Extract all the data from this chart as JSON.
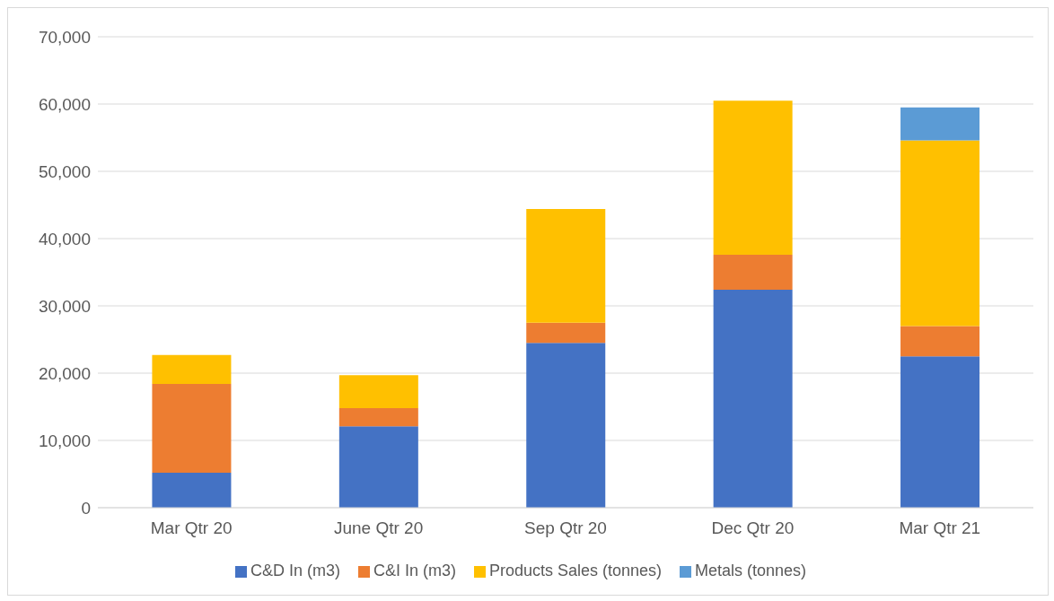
{
  "chart_data": {
    "type": "bar",
    "stacked": true,
    "categories": [
      "Mar Qtr 20",
      "June Qtr 20",
      "Sep Qtr 20",
      "Dec Qtr 20",
      "Mar Qtr 21"
    ],
    "series": [
      {
        "name": "C&D In (m3)",
        "color": "#4472c4",
        "values": [
          5200,
          12100,
          24500,
          32400,
          22500
        ]
      },
      {
        "name": "C&I In (m3)",
        "color": "#ed7d31",
        "values": [
          13200,
          2700,
          3000,
          5200,
          4500
        ]
      },
      {
        "name": "Products Sales (tonnes)",
        "color": "#ffc000",
        "values": [
          4300,
          4900,
          16900,
          22900,
          27600
        ]
      },
      {
        "name": "Metals (tonnes)",
        "color": "#5b9bd5",
        "values": [
          null,
          null,
          null,
          null,
          4900
        ]
      }
    ],
    "ylim": [
      0,
      70000
    ],
    "yticks": [
      0,
      {
        "value": 10000,
        "label": "10,000"
      },
      {
        "value": 20000,
        "label": "20,000"
      },
      {
        "value": 30000,
        "label": "30,000"
      },
      {
        "value": 40000,
        "label": "40,000"
      },
      {
        "value": 50000,
        "label": "50,000"
      },
      {
        "value": 60000,
        "label": "60,000"
      },
      {
        "value": 70000,
        "label": "70,000"
      }
    ],
    "grid": "y",
    "legend": "bottom"
  }
}
